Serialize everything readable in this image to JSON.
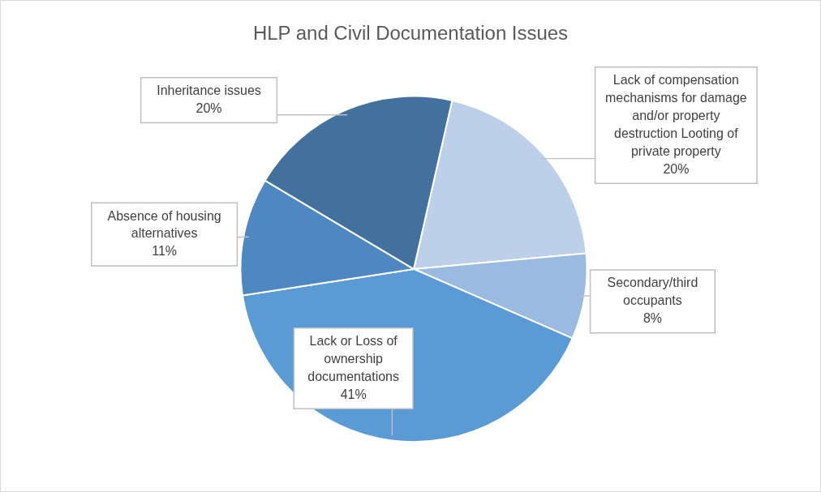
{
  "chart_data": {
    "type": "pie",
    "title": "HLP and Civil Documentation Issues",
    "categories": [
      "Lack of compensation mechanisms for damage and/or property destruction Looting of private property",
      "Secondary/third occupants",
      "Lack or Loss of ownership documentations",
      "Absence of housing alternatives",
      "Inheritance issues"
    ],
    "values": [
      20,
      8,
      41,
      11,
      20
    ],
    "value_labels": [
      "20%",
      "8%",
      "41%",
      "11%",
      "20%"
    ],
    "colors": [
      "#bdd0ea",
      "#9bbadf",
      "#5b9bd5",
      "#4e88c0",
      "#41719c"
    ],
    "legend": false
  }
}
